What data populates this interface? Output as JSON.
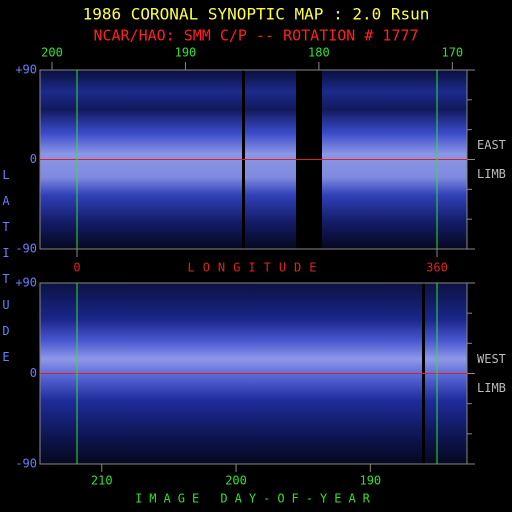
{
  "title": "1986 CORONAL SYNOPTIC MAP : 2.0 Rsun",
  "subtitle": "NCAR/HAO: SMM C/P -- ROTATION # 1777",
  "chart_data": [
    {
      "type": "image",
      "ylabel": "LATITUDE",
      "xlim": [
        200.9,
        168.9
      ],
      "xticks": [
        200,
        190,
        180,
        170
      ],
      "x2label": "LONGITUDE",
      "x2lim": [
        -37,
        390
      ],
      "x2ticks": [
        0,
        360
      ],
      "ylim": [
        -90,
        90
      ],
      "yticks": [
        {
          "value": 90,
          "label": "+90"
        },
        0,
        -90
      ],
      "side_labels": [
        "EAST",
        "LIMB"
      ]
    },
    {
      "type": "image",
      "xlabel": "IMAGE DAY-OF-YEAR",
      "xlim": [
        214.6,
        182.8
      ],
      "xticks": [
        210,
        200,
        190
      ],
      "ylim": [
        -90,
        90
      ],
      "yticks": [
        {
          "value": 90,
          "label": "+90"
        },
        0,
        -90
      ],
      "side_labels": [
        "WEST",
        "LIMB"
      ]
    }
  ]
}
